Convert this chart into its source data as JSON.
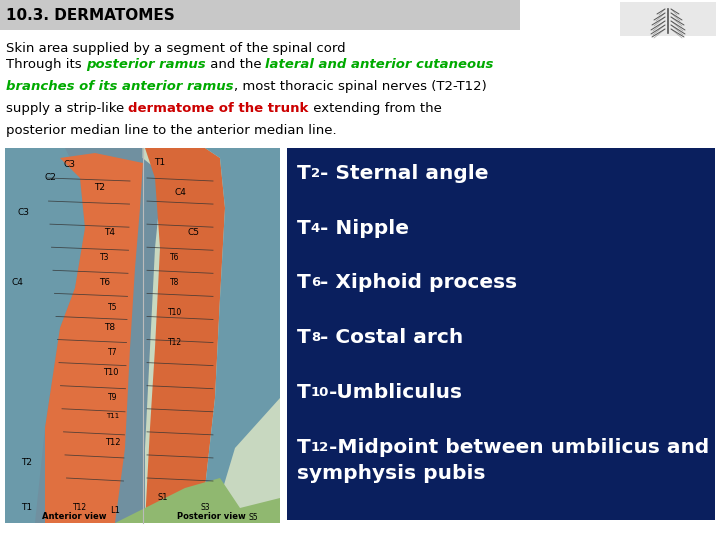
{
  "title": "10.3. DERMATOMES",
  "title_bg": "#c8c8c8",
  "subtitle": "Skin area supplied by a segment of the spinal cord",
  "bg_color": "#ffffff",
  "box_bg": "#0a1f5e",
  "box_items": [
    {
      "prefix": "T",
      "sub": "2",
      "text": "- Sternal angle"
    },
    {
      "prefix": "T",
      "sub": "4",
      "text": "- Nipple"
    },
    {
      "prefix": "T",
      "sub": "6",
      "text": "- Xiphoid process"
    },
    {
      "prefix": "T",
      "sub": "8",
      "text": "- Costal arch"
    },
    {
      "prefix": "T",
      "sub": "10",
      "text": "-Umbliculus"
    },
    {
      "prefix": "T",
      "sub": "12",
      "text": "-Midpoint between umbilicus and\nsymphysis pubis"
    }
  ],
  "green_color": "#00aa00",
  "red_color": "#cc0000",
  "black_color": "#000000",
  "white_color": "#ffffff"
}
